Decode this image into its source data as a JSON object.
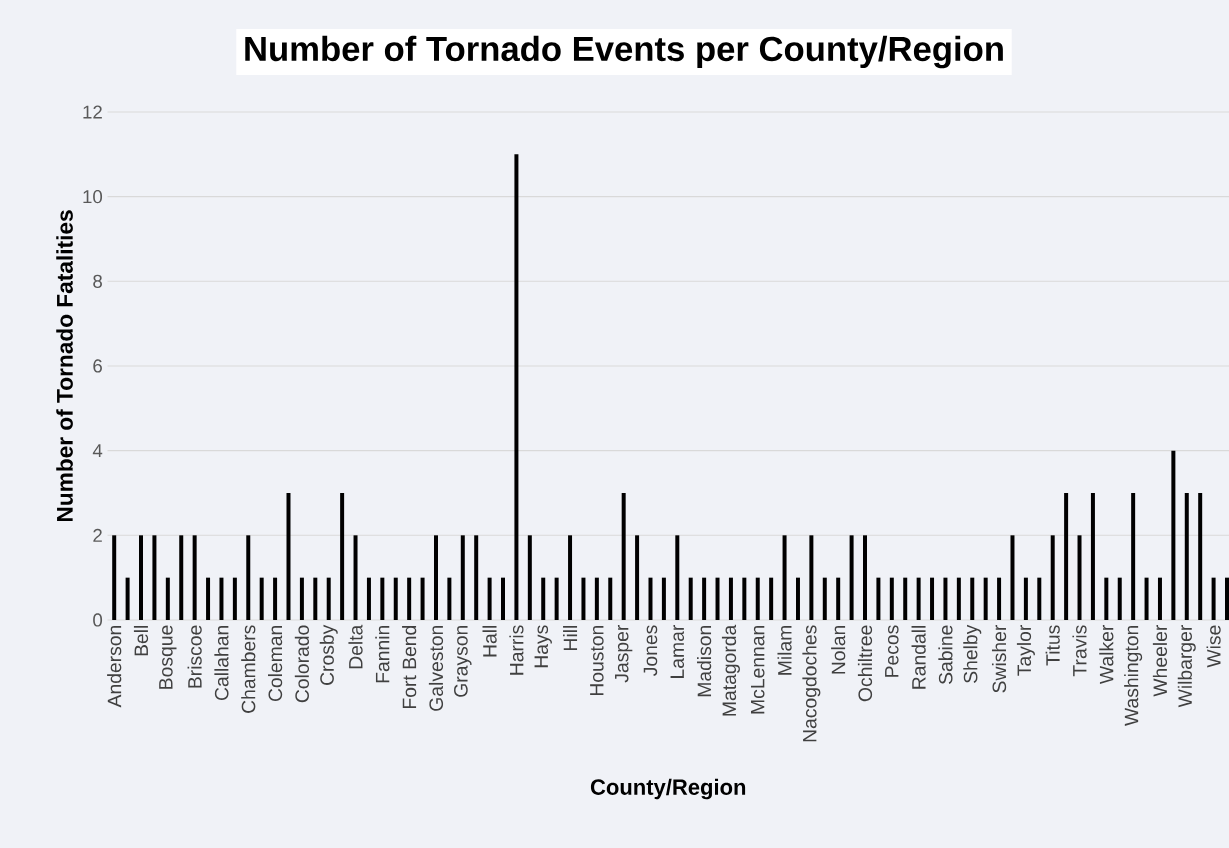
{
  "chart_data": {
    "type": "bar",
    "title": "Number of Tornado Events per County/Region",
    "xlabel": "County/Region",
    "ylabel": "Number of Tornado Fatalities",
    "categories": [
      "Anderson",
      null,
      "Bell",
      null,
      "Bosque",
      null,
      "Briscoe",
      null,
      "Callahan",
      null,
      "Chambers",
      null,
      "Coleman",
      null,
      "Colorado",
      null,
      "Crosby",
      null,
      "Delta",
      null,
      "Fannin",
      null,
      "Fort Bend",
      null,
      "Galveston",
      null,
      "Grayson",
      null,
      "Hall",
      null,
      "Harris",
      null,
      "Hays",
      null,
      "Hill",
      null,
      "Houston",
      null,
      "Jasper",
      null,
      "Jones",
      null,
      "Lamar",
      null,
      "Madison",
      null,
      "Matagorda",
      null,
      "McLennan",
      null,
      "Milam",
      null,
      "Nacogdoches",
      null,
      "Nolan",
      null,
      "Ochiltree",
      null,
      "Pecos",
      null,
      "Randall",
      null,
      "Sabine",
      null,
      "Shelby",
      null,
      "Swisher",
      null,
      "Taylor",
      null,
      "Titus",
      null,
      "Travis",
      null,
      "Walker",
      null,
      "Washington",
      null,
      "Wheeler",
      null,
      "Wilbarger",
      null,
      "Wise",
      null
    ],
    "values": [
      2,
      1,
      2,
      2,
      1,
      2,
      2,
      1,
      1,
      1,
      2,
      1,
      1,
      3,
      1,
      1,
      1,
      3,
      2,
      1,
      1,
      1,
      1,
      1,
      2,
      1,
      2,
      2,
      1,
      1,
      11,
      2,
      1,
      1,
      2,
      1,
      1,
      1,
      3,
      2,
      1,
      1,
      2,
      1,
      1,
      1,
      1,
      1,
      1,
      1,
      2,
      1,
      2,
      1,
      1,
      2,
      2,
      1,
      1,
      1,
      1,
      1,
      1,
      1,
      1,
      1,
      1,
      2,
      1,
      1,
      2,
      3,
      2,
      3,
      1,
      1,
      3,
      1,
      1,
      4,
      3,
      3,
      1,
      1
    ],
    "color": "#000000",
    "ylim": [
      0,
      12
    ],
    "yticks": [
      0,
      2,
      4,
      6,
      8,
      10,
      12
    ],
    "grid": "y"
  }
}
